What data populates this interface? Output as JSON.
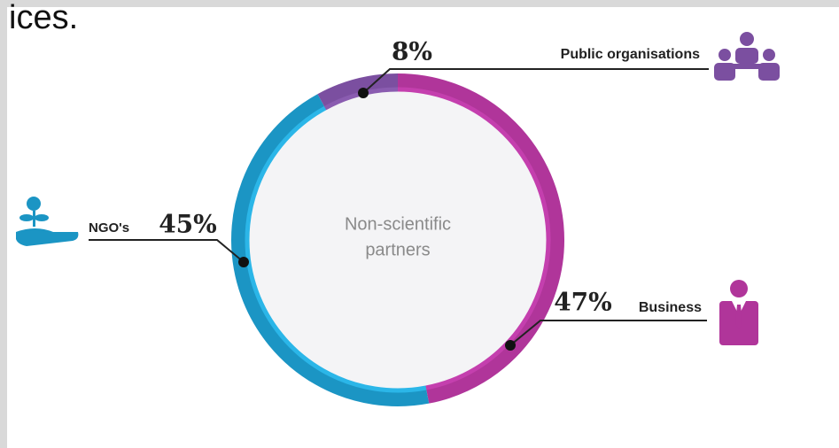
{
  "fragment": "ices.",
  "chart_data": {
    "type": "pie",
    "donut": true,
    "center_label": [
      "Non-scientific",
      "partners"
    ],
    "categories": [
      "Business",
      "NGO's",
      "Public organisations"
    ],
    "values": [
      47,
      45,
      8
    ],
    "value_labels": [
      "47%",
      "45%",
      "8%"
    ],
    "colors": [
      "#b0359a",
      "#1b95c4",
      "#7b4fa0"
    ],
    "inner_colors": [
      "#c43fae",
      "#2bb6e8",
      "#8a5cb0"
    ]
  }
}
